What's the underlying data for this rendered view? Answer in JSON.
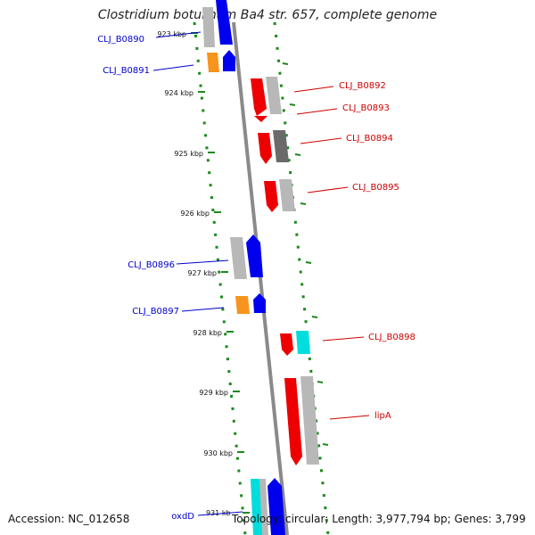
{
  "title": "Clostridium botulinum Ba4 str. 657, complete genome",
  "footer": {
    "accession": "Accession: NC_012658",
    "summary": "Topology: circular; Length: 3,977,794 bp; Genes: 3,799"
  },
  "ticks": [
    {
      "label": "923 kbp"
    },
    {
      "label": "924 kbp"
    },
    {
      "label": "925 kbp"
    },
    {
      "label": "926 kbp"
    },
    {
      "label": "927 kbp"
    },
    {
      "label": "928 kbp"
    },
    {
      "label": "929 kbp"
    },
    {
      "label": "930 kbp"
    },
    {
      "label": "931 kb"
    }
  ],
  "left_genes": [
    {
      "name": "CLJ_B0890",
      "color": "#0000ee",
      "label_color": "#0000cc"
    },
    {
      "name": "CLJ_B0891",
      "color": "#0000ee",
      "label_color": "#0000cc"
    },
    {
      "name": "CLJ_B0896",
      "color": "#0000ee",
      "label_color": "#0000cc"
    },
    {
      "name": "CLJ_B0897",
      "color": "#0000ee",
      "label_color": "#0000cc"
    },
    {
      "name": "oxdD",
      "color": "#0000ee",
      "label_color": "#0000cc"
    }
  ],
  "right_genes": [
    {
      "name": "CLJ_B0892",
      "color": "#ee0000",
      "label_color": "#cc0000"
    },
    {
      "name": "CLJ_B0893",
      "color": "#ee0000",
      "label_color": "#cc0000"
    },
    {
      "name": "CLJ_B0894",
      "color": "#ee0000",
      "label_color": "#cc0000"
    },
    {
      "name": "CLJ_B0895",
      "color": "#ee0000",
      "label_color": "#cc0000"
    },
    {
      "name": "CLJ_B0898",
      "color": "#ee0000",
      "label_color": "#cc0000"
    },
    {
      "name": "lipA",
      "color": "#ee0000",
      "label_color": "#cc0000"
    }
  ],
  "colors": {
    "backbone": "#8a8a8a",
    "dotted_track": "#1a8a1a",
    "cog_gray": "#b8b8b8",
    "cog_dark": "#6a6a6a",
    "cog_orange": "#f7941d",
    "cog_cyan": "#00dddd"
  }
}
